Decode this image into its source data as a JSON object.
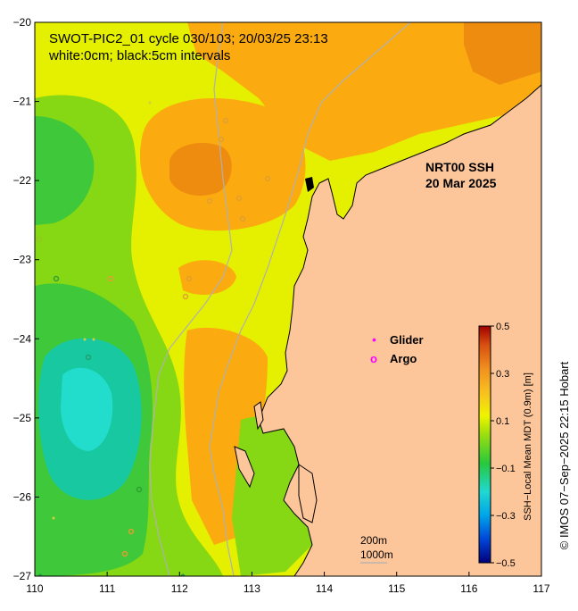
{
  "map": {
    "title_line1": "SWOT-PIC2_01 cycle 030/103; 20/03/25 23:13",
    "title_line2": "white:0cm; black:5cm intervals",
    "product_line1": "NRT00 SSH",
    "product_line2": "20 Mar 2025",
    "x_ticks": [
      "110",
      "111",
      "112",
      "113",
      "114",
      "115",
      "116",
      "117"
    ],
    "y_ticks": [
      "−20",
      "−21",
      "−22",
      "−23",
      "−24",
      "−25",
      "−26",
      "−27"
    ],
    "lon_range": [
      110,
      117
    ],
    "lat_range": [
      -27,
      -20
    ]
  },
  "legend": {
    "glider_label": "Glider",
    "argo_label": "Argo",
    "glider_symbol": "•",
    "argo_symbol": "o",
    "glider_color": "#ff00ff",
    "argo_color": "#ff00ff"
  },
  "scale": {
    "depth_200": "200m",
    "depth_1000": "1000m"
  },
  "colorbar": {
    "label": "SSH−Local Mean MDT (0.9m) [m]",
    "ticks": [
      "0.5",
      "0.3",
      "0.1",
      "−0.1",
      "−0.3",
      "−0.5"
    ],
    "range": [
      -0.5,
      0.5
    ]
  },
  "credit": "© IMOS 07−Sep−2025 22:15 Hobart",
  "colors": {
    "land": "#fdc69a",
    "ocean_yellow": "#e4f000",
    "orange": "#fbaa10",
    "dark_orange": "#ee8c10",
    "green": "#86d814",
    "dark_green": "#3ec83a",
    "teal": "#18c8a0",
    "cyan": "#22dccc"
  }
}
